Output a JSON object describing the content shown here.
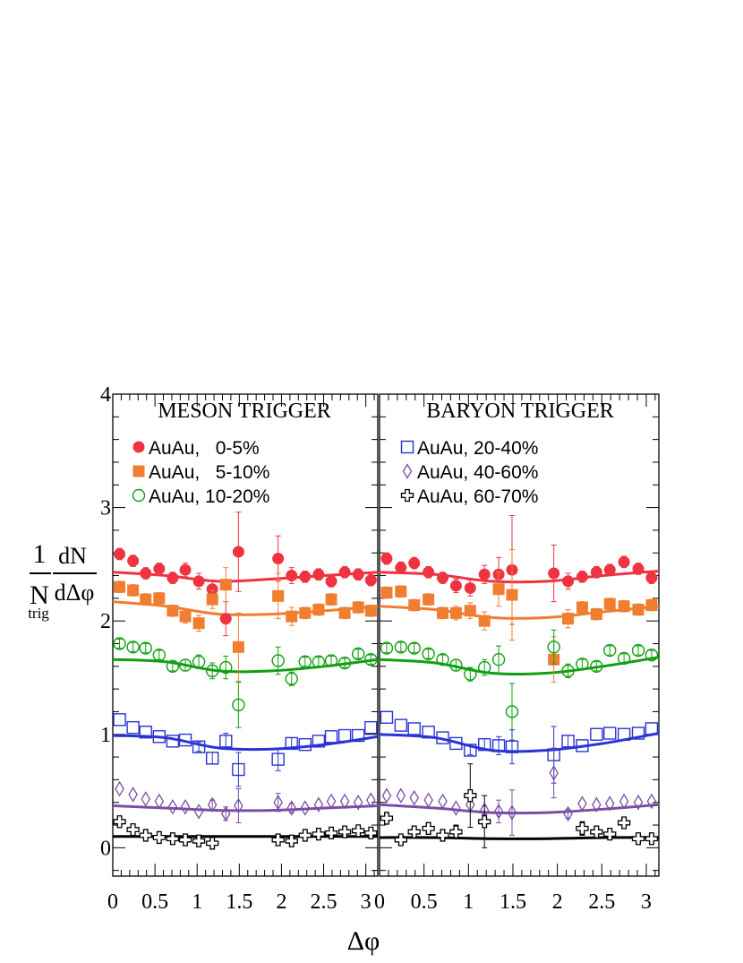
{
  "figure": {
    "ylabel": {
      "one": "1",
      "N": "N",
      "trig": "trig",
      "dN": "dN",
      "dDphi": "dΔφ"
    },
    "xlabel": "Δφ"
  },
  "chart_data": [
    {
      "type": "scatter",
      "title": "MESON TRIGGER",
      "xlabel": "Δφ",
      "ylabel": "1/N_trig dN/dΔφ",
      "xlim": [
        0,
        3.1416
      ],
      "ylim": [
        -0.25,
        4
      ],
      "x_ticks": [
        "0",
        "0.5",
        "1",
        "1.5",
        "2",
        "2.5",
        "3"
      ],
      "y_ticks": [
        "0",
        "1",
        "2",
        "3",
        "4"
      ],
      "legend_position": "upper-left",
      "series": [
        {
          "name": "AuAu,   0-5%",
          "color": "#ef3340",
          "marker": "circle-filled",
          "x": [
            0.08,
            0.24,
            0.39,
            0.55,
            0.71,
            0.86,
            1.02,
            1.18,
            1.34,
            1.49,
            1.96,
            2.12,
            2.28,
            2.44,
            2.59,
            2.75,
            2.91,
            3.06
          ],
          "y": [
            2.59,
            2.53,
            2.42,
            2.46,
            2.38,
            2.45,
            2.35,
            2.28,
            2.02,
            2.61,
            2.55,
            2.4,
            2.39,
            2.41,
            2.35,
            2.43,
            2.41,
            2.36
          ],
          "err": [
            0.05,
            0.05,
            0.05,
            0.05,
            0.05,
            0.06,
            0.07,
            0.07,
            0.15,
            0.35,
            0.2,
            0.07,
            0.05,
            0.05,
            0.05,
            0.05,
            0.05,
            0.05
          ]
        },
        {
          "name": "AuAu,   5-10%",
          "color": "#f07d30",
          "marker": "square-filled",
          "x": [
            0.08,
            0.24,
            0.39,
            0.55,
            0.71,
            0.86,
            1.02,
            1.18,
            1.34,
            1.49,
            1.96,
            2.12,
            2.28,
            2.44,
            2.59,
            2.75,
            2.91,
            3.06
          ],
          "y": [
            2.3,
            2.27,
            2.19,
            2.2,
            2.09,
            2.04,
            1.98,
            2.19,
            2.32,
            1.77,
            2.22,
            2.04,
            2.07,
            2.1,
            2.19,
            2.07,
            2.12,
            2.09
          ],
          "err": [
            0.05,
            0.05,
            0.05,
            0.05,
            0.05,
            0.06,
            0.07,
            0.08,
            0.15,
            0.3,
            0.2,
            0.08,
            0.05,
            0.05,
            0.05,
            0.05,
            0.05,
            0.05
          ]
        },
        {
          "name": "AuAu, 10-20%",
          "color": "#10a010",
          "marker": "circle-open",
          "x": [
            0.08,
            0.24,
            0.39,
            0.55,
            0.71,
            0.86,
            1.02,
            1.18,
            1.34,
            1.49,
            1.96,
            2.12,
            2.28,
            2.44,
            2.59,
            2.75,
            2.91,
            3.06
          ],
          "y": [
            1.8,
            1.77,
            1.76,
            1.7,
            1.6,
            1.61,
            1.64,
            1.56,
            1.59,
            1.26,
            1.65,
            1.49,
            1.64,
            1.64,
            1.65,
            1.63,
            1.71,
            1.66
          ],
          "err": [
            0.04,
            0.04,
            0.04,
            0.04,
            0.04,
            0.05,
            0.06,
            0.07,
            0.1,
            0.2,
            0.12,
            0.06,
            0.04,
            0.04,
            0.04,
            0.04,
            0.04,
            0.04
          ]
        },
        {
          "name": "AuAu, 20-40%",
          "color": "#2a34d4",
          "marker": "square-open",
          "x": [
            0.08,
            0.24,
            0.39,
            0.55,
            0.71,
            0.86,
            1.02,
            1.18,
            1.34,
            1.49,
            1.96,
            2.12,
            2.28,
            2.44,
            2.59,
            2.75,
            2.91,
            3.06
          ],
          "y": [
            1.13,
            1.06,
            1.02,
            0.98,
            0.94,
            0.95,
            0.89,
            0.79,
            0.94,
            0.69,
            0.78,
            0.92,
            0.91,
            0.94,
            0.98,
            0.99,
            0.99,
            1.06
          ],
          "err": [
            0.03,
            0.03,
            0.03,
            0.03,
            0.03,
            0.03,
            0.04,
            0.05,
            0.07,
            0.15,
            0.1,
            0.05,
            0.03,
            0.03,
            0.03,
            0.03,
            0.03,
            0.03
          ]
        },
        {
          "name": "AuAu, 40-60%",
          "color": "#7b4ea5",
          "marker": "diamond-open",
          "x": [
            0.08,
            0.24,
            0.39,
            0.55,
            0.71,
            0.86,
            1.02,
            1.18,
            1.34,
            1.49,
            1.96,
            2.12,
            2.28,
            2.44,
            2.59,
            2.75,
            2.91,
            3.06
          ],
          "y": [
            0.52,
            0.47,
            0.43,
            0.41,
            0.36,
            0.36,
            0.32,
            0.38,
            0.3,
            0.37,
            0.4,
            0.35,
            0.35,
            0.38,
            0.41,
            0.41,
            0.4,
            0.42
          ],
          "err": [
            0.02,
            0.02,
            0.02,
            0.02,
            0.02,
            0.02,
            0.03,
            0.04,
            0.06,
            0.15,
            0.08,
            0.04,
            0.02,
            0.02,
            0.02,
            0.02,
            0.02,
            0.02
          ]
        },
        {
          "name": "AuAu, 60-70%",
          "color": "#000000",
          "marker": "cross-open",
          "x": [
            0.08,
            0.24,
            0.39,
            0.55,
            0.71,
            0.86,
            1.02,
            1.18,
            1.96,
            2.12,
            2.28,
            2.44,
            2.59,
            2.75,
            2.91,
            3.06
          ],
          "y": [
            0.23,
            0.16,
            0.11,
            0.09,
            0.08,
            0.07,
            0.06,
            0.04,
            0.07,
            0.06,
            0.11,
            0.12,
            0.13,
            0.14,
            0.15,
            0.13
          ],
          "err": [
            0.02,
            0.02,
            0.02,
            0.02,
            0.02,
            0.02,
            0.03,
            0.04,
            0.05,
            0.03,
            0.02,
            0.02,
            0.02,
            0.02,
            0.02,
            0.02
          ]
        }
      ],
      "fits": [
        {
          "color": "#ef3340",
          "y": [
            2.43,
            2.4,
            2.35,
            2.37,
            2.4,
            2.43
          ]
        },
        {
          "color": "#f07d30",
          "y": [
            2.17,
            2.13,
            2.06,
            2.06,
            2.09,
            2.13
          ]
        },
        {
          "color": "#10a010",
          "y": [
            1.66,
            1.64,
            1.56,
            1.56,
            1.6,
            1.66
          ]
        },
        {
          "color": "#2a34d4",
          "y": [
            0.99,
            0.97,
            0.88,
            0.87,
            0.91,
            0.98
          ]
        },
        {
          "color": "#7b4ea5",
          "y": [
            0.37,
            0.35,
            0.33,
            0.33,
            0.35,
            0.37
          ]
        },
        {
          "color": "#000000",
          "y": [
            0.1,
            0.1,
            0.1,
            0.1,
            0.1,
            0.1
          ]
        }
      ]
    },
    {
      "type": "scatter",
      "title": "BARYON TRIGGER",
      "xlabel": "Δφ",
      "ylabel": "1/N_trig dN/dΔφ",
      "xlim": [
        0,
        3.1416
      ],
      "ylim": [
        -0.25,
        4
      ],
      "x_ticks": [
        "0",
        "0.5",
        "1",
        "1.5",
        "2",
        "2.5",
        "3"
      ],
      "y_ticks": [
        "0",
        "1",
        "2",
        "3",
        "4"
      ],
      "legend_position": "upper-left",
      "series": [
        {
          "name": "AuAu,   0-5%",
          "color": "#ef3340",
          "marker": "circle-filled",
          "x": [
            0.08,
            0.24,
            0.39,
            0.55,
            0.71,
            0.86,
            1.02,
            1.18,
            1.34,
            1.49,
            1.96,
            2.12,
            2.28,
            2.44,
            2.59,
            2.75,
            2.91,
            3.06
          ],
          "y": [
            2.55,
            2.47,
            2.51,
            2.43,
            2.38,
            2.31,
            2.29,
            2.41,
            2.41,
            2.45,
            2.42,
            2.35,
            2.39,
            2.43,
            2.45,
            2.52,
            2.46,
            2.38
          ],
          "err": [
            0.05,
            0.05,
            0.05,
            0.05,
            0.05,
            0.06,
            0.07,
            0.08,
            0.15,
            0.48,
            0.25,
            0.07,
            0.05,
            0.05,
            0.05,
            0.05,
            0.05,
            0.05
          ]
        },
        {
          "name": "AuAu,   5-10%",
          "color": "#f07d30",
          "marker": "square-filled",
          "x": [
            0.08,
            0.24,
            0.39,
            0.55,
            0.71,
            0.86,
            1.02,
            1.18,
            1.34,
            1.49,
            1.96,
            2.12,
            2.28,
            2.44,
            2.59,
            2.75,
            2.91,
            3.06
          ],
          "y": [
            2.25,
            2.26,
            2.14,
            2.19,
            2.07,
            2.07,
            2.09,
            2.0,
            2.28,
            2.23,
            1.66,
            2.02,
            2.12,
            2.06,
            2.15,
            2.13,
            2.1,
            2.14
          ],
          "err": [
            0.05,
            0.05,
            0.05,
            0.05,
            0.05,
            0.06,
            0.07,
            0.08,
            0.15,
            0.4,
            0.2,
            0.08,
            0.05,
            0.05,
            0.05,
            0.05,
            0.05,
            0.05
          ]
        },
        {
          "name": "AuAu, 10-20%",
          "color": "#10a010",
          "marker": "circle-open",
          "x": [
            0.08,
            0.24,
            0.39,
            0.55,
            0.71,
            0.86,
            1.02,
            1.18,
            1.34,
            1.49,
            1.96,
            2.12,
            2.28,
            2.44,
            2.59,
            2.75,
            2.91,
            3.06
          ],
          "y": [
            1.76,
            1.77,
            1.76,
            1.71,
            1.66,
            1.61,
            1.53,
            1.59,
            1.66,
            1.2,
            1.77,
            1.56,
            1.62,
            1.6,
            1.74,
            1.67,
            1.74,
            1.7
          ],
          "err": [
            0.04,
            0.04,
            0.04,
            0.04,
            0.04,
            0.05,
            0.06,
            0.07,
            0.12,
            0.25,
            0.15,
            0.06,
            0.04,
            0.04,
            0.04,
            0.04,
            0.04,
            0.04
          ]
        },
        {
          "name": "AuAu, 20-40%",
          "color": "#2a34d4",
          "marker": "square-open",
          "x": [
            0.08,
            0.24,
            0.39,
            0.55,
            0.71,
            0.86,
            1.02,
            1.18,
            1.34,
            1.49,
            1.96,
            2.12,
            2.28,
            2.44,
            2.59,
            2.75,
            2.91,
            3.06
          ],
          "y": [
            1.15,
            1.08,
            1.05,
            1.02,
            0.97,
            0.92,
            0.86,
            0.91,
            0.9,
            0.89,
            0.82,
            0.94,
            0.9,
            1.0,
            1.01,
            1.0,
            1.01,
            1.05
          ],
          "err": [
            0.03,
            0.03,
            0.03,
            0.03,
            0.03,
            0.03,
            0.04,
            0.05,
            0.08,
            0.15,
            0.25,
            0.05,
            0.03,
            0.03,
            0.03,
            0.03,
            0.03,
            0.03
          ]
        },
        {
          "name": "AuAu, 40-60%",
          "color": "#7b4ea5",
          "marker": "diamond-open",
          "x": [
            0.08,
            0.24,
            0.39,
            0.55,
            0.71,
            0.86,
            1.02,
            1.18,
            1.34,
            1.49,
            1.96,
            2.12,
            2.28,
            2.44,
            2.59,
            2.75,
            2.91,
            3.06
          ],
          "y": [
            0.46,
            0.46,
            0.44,
            0.42,
            0.41,
            0.35,
            0.38,
            0.33,
            0.32,
            0.31,
            0.66,
            0.3,
            0.39,
            0.38,
            0.39,
            0.41,
            0.4,
            0.41
          ],
          "err": [
            0.02,
            0.02,
            0.02,
            0.02,
            0.02,
            0.02,
            0.03,
            0.04,
            0.1,
            0.2,
            0.22,
            0.04,
            0.02,
            0.02,
            0.02,
            0.02,
            0.02,
            0.02
          ]
        },
        {
          "name": "AuAu, 60-70%",
          "color": "#000000",
          "marker": "cross-open",
          "x": [
            0.08,
            0.24,
            0.39,
            0.55,
            0.71,
            0.86,
            1.02,
            1.18,
            2.28,
            2.44,
            2.59,
            2.75,
            2.91,
            3.06
          ],
          "y": [
            0.26,
            0.07,
            0.14,
            0.17,
            0.11,
            0.14,
            0.46,
            0.23,
            0.17,
            0.14,
            0.12,
            0.22,
            0.08,
            0.08
          ],
          "err": [
            0.04,
            0.04,
            0.05,
            0.05,
            0.05,
            0.06,
            0.28,
            0.23,
            0.06,
            0.05,
            0.04,
            0.04,
            0.04,
            0.04
          ]
        }
      ],
      "fits": [
        {
          "color": "#ef3340",
          "y": [
            2.43,
            2.41,
            2.35,
            2.35,
            2.4,
            2.44
          ]
        },
        {
          "color": "#f07d30",
          "y": [
            2.13,
            2.1,
            2.03,
            2.03,
            2.08,
            2.13
          ]
        },
        {
          "color": "#10a010",
          "y": [
            1.66,
            1.63,
            1.54,
            1.54,
            1.6,
            1.68
          ]
        },
        {
          "color": "#2a34d4",
          "y": [
            1.0,
            0.97,
            0.86,
            0.86,
            0.92,
            1.01
          ]
        },
        {
          "color": "#7b4ea5",
          "y": [
            0.38,
            0.35,
            0.31,
            0.31,
            0.34,
            0.38
          ]
        },
        {
          "color": "#000000",
          "y": [
            0.09,
            0.09,
            0.08,
            0.08,
            0.09,
            0.09
          ]
        }
      ]
    }
  ],
  "legends": {
    "left": [
      {
        "label": "AuAu,   0-5%",
        "color": "#ef3340",
        "marker": "circle-filled"
      },
      {
        "label": "AuAu,   5-10%",
        "color": "#f07d30",
        "marker": "square-filled"
      },
      {
        "label": "AuAu, 10-20%",
        "color": "#10a010",
        "marker": "circle-open"
      }
    ],
    "right": [
      {
        "label": "AuAu, 20-40%",
        "color": "#2a34d4",
        "marker": "square-open"
      },
      {
        "label": "AuAu, 40-60%",
        "color": "#7b4ea5",
        "marker": "diamond-open"
      },
      {
        "label": "AuAu, 60-70%",
        "color": "#000000",
        "marker": "cross-open"
      }
    ]
  }
}
